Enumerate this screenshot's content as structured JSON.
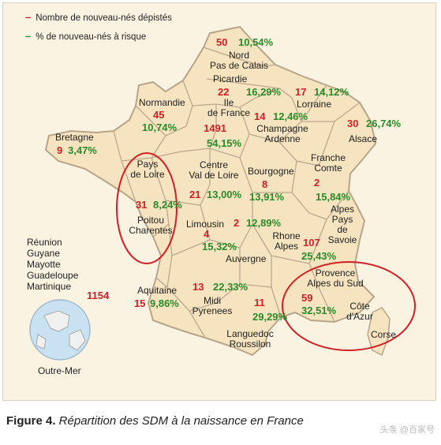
{
  "legend": {
    "red_label": "Nombre de nouveau-nés dépistés",
    "green_label": "% de nouveau-nés à risque",
    "red_color": "#d21f26",
    "green_color": "#2a8a2a"
  },
  "regions": [
    {
      "id": "nord",
      "name": "Nord\nPas de Calais",
      "count": "50",
      "pct": "10,54%"
    },
    {
      "id": "picardie",
      "name": "Picardie",
      "count": "22",
      "pct": "16,29%"
    },
    {
      "id": "lorraine",
      "name": "Lorraine",
      "count": "17",
      "pct": "14,12%"
    },
    {
      "id": "normandie",
      "name": "Normandie",
      "count": "45",
      "pct": "10,74%"
    },
    {
      "id": "idf",
      "name": "Ile\nde France",
      "count": "1491",
      "pct": "54,15%"
    },
    {
      "id": "champagne",
      "name": "Champagne\nArdenne",
      "count": "14",
      "pct": "12,46%"
    },
    {
      "id": "alsace",
      "name": "Alsace",
      "count": "30",
      "pct": "26,74%"
    },
    {
      "id": "bretagne",
      "name": "Bretagne",
      "count": "9",
      "pct": "3,47%"
    },
    {
      "id": "pdl",
      "name": "Pays\nde Loire",
      "count": "",
      "pct": ""
    },
    {
      "id": "centre",
      "name": "Centre\nVal de Loire",
      "count": "21",
      "pct": "13,00%"
    },
    {
      "id": "bourgogne",
      "name": "Bourgogne",
      "count": "8",
      "pct": "13,91%"
    },
    {
      "id": "franche",
      "name": "Franche\nComte",
      "count": "2",
      "pct": "15,84%"
    },
    {
      "id": "poitou",
      "name": "Poitou\nCharentes",
      "count": "31",
      "pct": "8,24%"
    },
    {
      "id": "limousin",
      "name": "Limousin",
      "count": "2",
      "pct": "12,89%"
    },
    {
      "id": "auvergne",
      "name": "Auvergne",
      "count": "4",
      "pct": "15,32%"
    },
    {
      "id": "rhone",
      "name": "Rhone\nAlpes",
      "count": "107",
      "pct": "25,43%"
    },
    {
      "id": "savoie",
      "name": "Alpes\nPays\nde\nSavoie",
      "count": "",
      "pct": ""
    },
    {
      "id": "aquitaine",
      "name": "Aquitaine",
      "count": "15",
      "pct": "9,86%"
    },
    {
      "id": "midi",
      "name": "Midi\nPyrenees",
      "count": "13",
      "pct": "22,33%"
    },
    {
      "id": "languedoc",
      "name": "Languedoc\nRoussilon",
      "count": "11",
      "pct": "29,29%"
    },
    {
      "id": "paca",
      "name": "Provence\nAlpes du Sud",
      "count": "59",
      "pct": "32,51%"
    },
    {
      "id": "cote",
      "name": "Côte\nd'Azur",
      "count": "",
      "pct": ""
    },
    {
      "id": "corse",
      "name": "Corse",
      "count": "",
      "pct": ""
    }
  ],
  "outremer": {
    "list": [
      "Réunion",
      "Guyane",
      "Mayotte",
      "Guadeloupe",
      "Martinique"
    ],
    "count": "1154",
    "globe_label": "Outre-Mer"
  },
  "caption": {
    "bold": "Figure 4.",
    "text": " Répartition des SDM à la naissance en France"
  },
  "watermark": "头条 @百家号"
}
